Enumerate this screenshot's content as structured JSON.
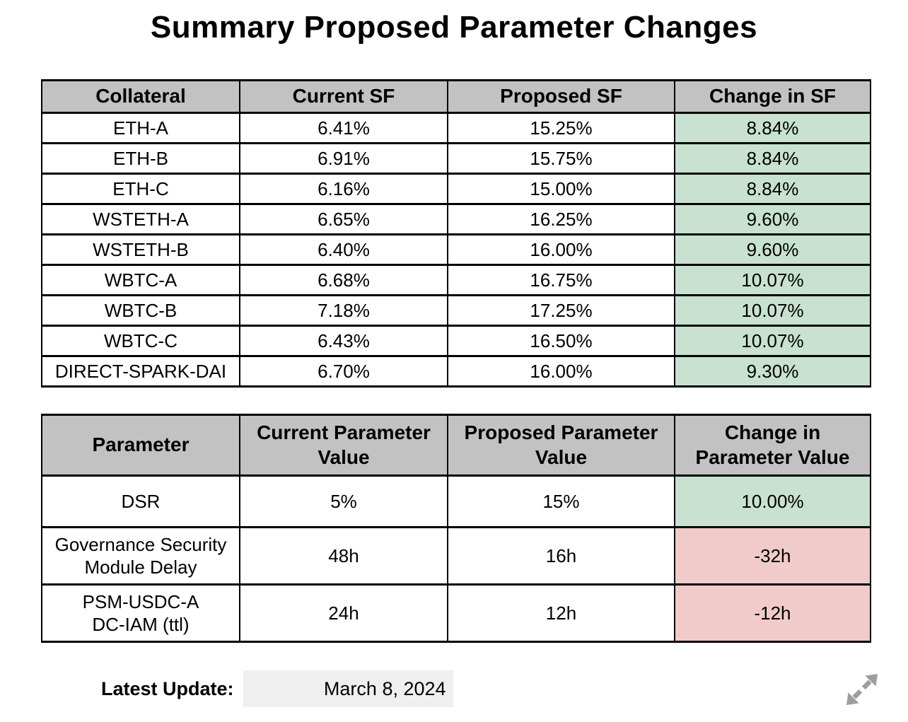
{
  "page": {
    "title": "Summary Proposed Parameter Changes"
  },
  "colors": {
    "header_bg": "#c2c2c2",
    "positive_bg": "#c8e1d0",
    "negative_bg": "#f0cbc9",
    "date_box_bg": "#efefef",
    "border": "#000000",
    "icon_gray": "#9e9e9e"
  },
  "sf_table": {
    "headers": [
      "Collateral",
      "Current SF",
      "Proposed SF",
      "Change in SF"
    ],
    "rows": [
      {
        "collateral": "ETH-A",
        "current": "6.41%",
        "proposed": "15.25%",
        "change": "8.84%",
        "change_type": "positive"
      },
      {
        "collateral": "ETH-B",
        "current": "6.91%",
        "proposed": "15.75%",
        "change": "8.84%",
        "change_type": "positive"
      },
      {
        "collateral": "ETH-C",
        "current": "6.16%",
        "proposed": "15.00%",
        "change": "8.84%",
        "change_type": "positive"
      },
      {
        "collateral": "WSTETH-A",
        "current": "6.65%",
        "proposed": "16.25%",
        "change": "9.60%",
        "change_type": "positive"
      },
      {
        "collateral": "WSTETH-B",
        "current": "6.40%",
        "proposed": "16.00%",
        "change": "9.60%",
        "change_type": "positive"
      },
      {
        "collateral": "WBTC-A",
        "current": "6.68%",
        "proposed": "16.75%",
        "change": "10.07%",
        "change_type": "positive"
      },
      {
        "collateral": "WBTC-B",
        "current": "7.18%",
        "proposed": "17.25%",
        "change": "10.07%",
        "change_type": "positive"
      },
      {
        "collateral": "WBTC-C",
        "current": "6.43%",
        "proposed": "16.50%",
        "change": "10.07%",
        "change_type": "positive"
      },
      {
        "collateral": "DIRECT-SPARK-DAI",
        "current": "6.70%",
        "proposed": "16.00%",
        "change": "9.30%",
        "change_type": "positive"
      }
    ]
  },
  "parameter_table": {
    "headers": [
      "Parameter",
      "Current Parameter Value",
      "Proposed Parameter Value",
      "Change in Parameter Value"
    ],
    "rows": [
      {
        "parameter": "DSR",
        "current": "5%",
        "proposed": "15%",
        "change": "10.00%",
        "change_type": "positive"
      },
      {
        "parameter": "Governance Security\nModule Delay",
        "current": "48h",
        "proposed": "16h",
        "change": "-32h",
        "change_type": "negative"
      },
      {
        "parameter": "PSM-USDC-A\nDC-IAM (ttl)",
        "current": "24h",
        "proposed": "12h",
        "change": "-12h",
        "change_type": "negative"
      }
    ]
  },
  "footer": {
    "label": "Latest Update:",
    "date": "March 8, 2024"
  }
}
